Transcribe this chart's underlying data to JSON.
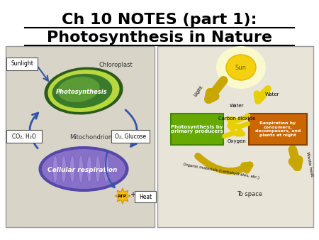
{
  "title_line1": "Ch 10 NOTES (part 1):",
  "title_line2": "Photosynthesis in Nature",
  "title_fontsize": 16,
  "title_fontweight": "bold",
  "title_color": "#000000",
  "background_color": "#ffffff",
  "left_panel_bg": "#d8d4c8",
  "right_panel_bg": "#e8e4d8",
  "left_labels": {
    "sunlight": "Sunlight",
    "chloroplast": "Chloroplast",
    "photosynthesis": "Photosynthesis",
    "co2": "CO₂, H₂O",
    "o2": "O₂, Glucose",
    "mitochondrion": "Mitochondrion",
    "cellular": "Cellular respiration",
    "atp": "ATP",
    "heat": "Heat"
  },
  "right_labels": {
    "sun": "Sun",
    "light": "Light",
    "water": "Water",
    "carbon_dioxide": "Carbon dioxide",
    "oxygen": "Oxygen",
    "organic": "Organic materials (carbohydrates, etc.)",
    "photosynthesis_box": "Photosynthesis by\nprimary producers",
    "respiration_box": "Respiration by\nconsumers,\ndecomposers, and\nplants at night",
    "to_space": "To space",
    "waste_heat": "Waste heat"
  },
  "colors": {
    "arrow_blue": "#3355aa",
    "sun_yellow_outer": "#ffffaa",
    "sun_yellow": "#f5d020",
    "arrow_yellow_dark": "#c8a800",
    "arrow_yellow_light": "#e8d000",
    "photosyn_box_green": "#66aa00",
    "respiration_box_orange": "#cc6600",
    "panel_border": "#999999",
    "chloro_dark": "#2a5a1a",
    "chloro_mid": "#3a7a2a",
    "chloro_light": "#6aaa3a",
    "chloro_yellow": "#b8d840",
    "mito_dark": "#5548a8",
    "mito_mid": "#8870c8",
    "mito_light": "#aa98e0"
  }
}
